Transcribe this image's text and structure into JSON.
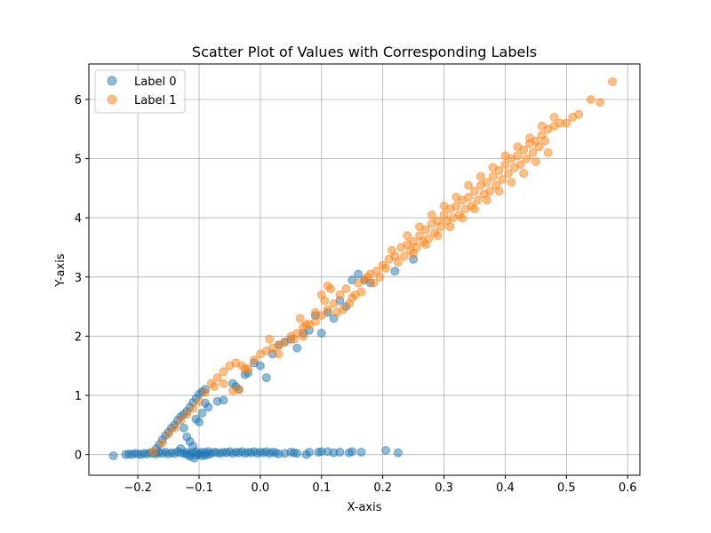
{
  "chart_data": {
    "type": "scatter",
    "title": "Scatter Plot of Values with Corresponding Labels",
    "xlabel": "X-axis",
    "ylabel": "Y-axis",
    "xlim": [
      -0.28,
      0.62
    ],
    "ylim": [
      -0.35,
      6.6
    ],
    "xticks": [
      -0.2,
      -0.1,
      0.0,
      0.1,
      0.2,
      0.3,
      0.4,
      0.5,
      0.6
    ],
    "xtick_labels": [
      "−0.2",
      "−0.1",
      "0.0",
      "0.1",
      "0.2",
      "0.3",
      "0.4",
      "0.5",
      "0.6"
    ],
    "yticks": [
      0,
      1,
      2,
      3,
      4,
      5,
      6
    ],
    "ytick_labels": [
      "0",
      "1",
      "2",
      "3",
      "4",
      "5",
      "6"
    ],
    "grid": true,
    "legend_position": "upper-left",
    "series": [
      {
        "name": "Label 0",
        "color": "#1f77b4",
        "points": [
          [
            -0.24,
            -0.02
          ],
          [
            -0.22,
            0.0
          ],
          [
            -0.215,
            0.01
          ],
          [
            -0.21,
            0.0
          ],
          [
            -0.205,
            0.02
          ],
          [
            -0.2,
            0.01
          ],
          [
            -0.195,
            0.0
          ],
          [
            -0.19,
            0.02
          ],
          [
            -0.185,
            0.01
          ],
          [
            -0.18,
            0.03
          ],
          [
            -0.175,
            0.02
          ],
          [
            -0.17,
            0.01
          ],
          [
            -0.165,
            0.03
          ],
          [
            -0.16,
            0.02
          ],
          [
            -0.155,
            0.04
          ],
          [
            -0.15,
            0.01
          ],
          [
            -0.145,
            0.03
          ],
          [
            -0.14,
            0.02
          ],
          [
            -0.135,
            0.05
          ],
          [
            -0.13,
            0.03
          ],
          [
            -0.125,
            0.02
          ],
          [
            -0.12,
            0.04
          ],
          [
            -0.115,
            0.01
          ],
          [
            -0.11,
            0.03
          ],
          [
            -0.105,
            0.05
          ],
          [
            -0.1,
            0.02
          ],
          [
            -0.095,
            0.04
          ],
          [
            -0.09,
            0.03
          ],
          [
            -0.085,
            0.05
          ],
          [
            -0.08,
            0.02
          ],
          [
            -0.075,
            0.04
          ],
          [
            -0.07,
            0.03
          ],
          [
            -0.065,
            0.02
          ],
          [
            -0.06,
            0.04
          ],
          [
            -0.055,
            0.03
          ],
          [
            -0.05,
            0.05
          ],
          [
            -0.045,
            0.02
          ],
          [
            -0.04,
            0.04
          ],
          [
            -0.035,
            0.03
          ],
          [
            -0.03,
            0.05
          ],
          [
            -0.025,
            0.02
          ],
          [
            -0.02,
            0.04
          ],
          [
            -0.015,
            0.03
          ],
          [
            -0.01,
            0.05
          ],
          [
            -0.005,
            0.02
          ],
          [
            0.0,
            0.04
          ],
          [
            0.005,
            0.03
          ],
          [
            0.01,
            0.05
          ],
          [
            0.015,
            0.02
          ],
          [
            0.02,
            0.04
          ],
          [
            0.025,
            0.03
          ],
          [
            0.03,
            0.01
          ],
          [
            0.04,
            0.02
          ],
          [
            0.05,
            0.04
          ],
          [
            0.055,
            0.03
          ],
          [
            0.06,
            0.02
          ],
          [
            0.075,
            0.0
          ],
          [
            0.08,
            0.04
          ],
          [
            0.095,
            0.04
          ],
          [
            0.1,
            0.05
          ],
          [
            0.11,
            0.05
          ],
          [
            0.12,
            0.03
          ],
          [
            0.13,
            0.04
          ],
          [
            0.145,
            0.03
          ],
          [
            0.15,
            0.05
          ],
          [
            0.165,
            0.04
          ],
          [
            0.205,
            0.07
          ],
          [
            0.225,
            0.03
          ],
          [
            -0.115,
            -0.03
          ],
          [
            -0.11,
            0.14
          ],
          [
            -0.105,
            -0.01
          ],
          [
            -0.1,
            0.0
          ],
          [
            -0.13,
            0.1
          ],
          [
            -0.12,
            0.0
          ],
          [
            -0.108,
            -0.06
          ],
          [
            -0.095,
            -0.02
          ],
          [
            -0.09,
            -0.01
          ],
          [
            -0.085,
            0.0
          ],
          [
            -0.17,
            0.1
          ],
          [
            -0.165,
            0.17
          ],
          [
            -0.16,
            0.25
          ],
          [
            -0.155,
            0.32
          ],
          [
            -0.15,
            0.38
          ],
          [
            -0.145,
            0.45
          ],
          [
            -0.14,
            0.5
          ],
          [
            -0.135,
            0.58
          ],
          [
            -0.13,
            0.64
          ],
          [
            -0.125,
            0.68
          ],
          [
            -0.12,
            0.73
          ],
          [
            -0.115,
            0.8
          ],
          [
            -0.11,
            0.88
          ],
          [
            -0.105,
            0.95
          ],
          [
            -0.1,
            1.02
          ],
          [
            -0.095,
            1.06
          ],
          [
            -0.09,
            1.1
          ],
          [
            -0.125,
            0.45
          ],
          [
            -0.12,
            0.3
          ],
          [
            -0.115,
            0.22
          ],
          [
            -0.105,
            0.6
          ],
          [
            -0.1,
            0.55
          ],
          [
            -0.095,
            0.7
          ],
          [
            -0.09,
            0.87
          ],
          [
            -0.085,
            0.8
          ],
          [
            -0.07,
            0.9
          ],
          [
            -0.06,
            0.92
          ],
          [
            -0.045,
            1.2
          ],
          [
            -0.04,
            1.15
          ],
          [
            -0.035,
            1.1
          ],
          [
            -0.025,
            1.35
          ],
          [
            -0.02,
            1.38
          ],
          [
            -0.01,
            1.55
          ],
          [
            0.0,
            1.5
          ],
          [
            0.01,
            1.3
          ],
          [
            0.02,
            1.7
          ],
          [
            0.03,
            1.85
          ],
          [
            0.04,
            1.9
          ],
          [
            0.05,
            1.95
          ],
          [
            0.06,
            1.8
          ],
          [
            0.07,
            2.05
          ],
          [
            0.08,
            2.1
          ],
          [
            0.09,
            2.35
          ],
          [
            0.1,
            2.05
          ],
          [
            0.11,
            2.4
          ],
          [
            0.12,
            2.3
          ],
          [
            0.13,
            2.6
          ],
          [
            0.14,
            2.5
          ],
          [
            0.15,
            2.95
          ],
          [
            0.16,
            3.05
          ],
          [
            0.17,
            2.95
          ],
          [
            0.18,
            2.9
          ],
          [
            0.22,
            3.1
          ],
          [
            0.25,
            3.3
          ]
        ]
      },
      {
        "name": "Label 1",
        "color": "#ff7f0e",
        "points": [
          [
            -0.175,
            0.05
          ],
          [
            -0.16,
            0.2
          ],
          [
            -0.15,
            0.35
          ],
          [
            -0.14,
            0.45
          ],
          [
            -0.13,
            0.58
          ],
          [
            -0.12,
            0.68
          ],
          [
            -0.11,
            0.78
          ],
          [
            -0.1,
            0.9
          ],
          [
            -0.09,
            1.05
          ],
          [
            -0.08,
            1.2
          ],
          [
            -0.07,
            1.3
          ],
          [
            -0.06,
            1.4
          ],
          [
            -0.05,
            1.5
          ],
          [
            -0.04,
            1.55
          ],
          [
            -0.03,
            1.5
          ],
          [
            -0.02,
            1.45
          ],
          [
            -0.01,
            1.6
          ],
          [
            0.0,
            1.7
          ],
          [
            0.01,
            1.75
          ],
          [
            0.015,
            1.95
          ],
          [
            0.02,
            1.8
          ],
          [
            0.03,
            1.85
          ],
          [
            0.04,
            1.9
          ],
          [
            0.05,
            2.0
          ],
          [
            0.06,
            2.05
          ],
          [
            0.065,
            2.3
          ],
          [
            0.07,
            2.15
          ],
          [
            0.08,
            2.2
          ],
          [
            0.09,
            2.25
          ],
          [
            0.1,
            2.35
          ],
          [
            0.105,
            2.6
          ],
          [
            0.11,
            2.45
          ],
          [
            0.12,
            2.55
          ],
          [
            0.13,
            2.7
          ],
          [
            0.14,
            2.8
          ],
          [
            0.15,
            2.65
          ],
          [
            0.16,
            2.9
          ],
          [
            0.17,
            2.95
          ],
          [
            0.18,
            3.05
          ],
          [
            0.19,
            3.1
          ],
          [
            0.2,
            3.2
          ],
          [
            0.21,
            3.3
          ],
          [
            0.22,
            3.35
          ],
          [
            0.23,
            3.5
          ],
          [
            0.24,
            3.55
          ],
          [
            0.25,
            3.6
          ],
          [
            0.26,
            3.7
          ],
          [
            0.27,
            3.8
          ],
          [
            0.28,
            3.9
          ],
          [
            0.29,
            3.95
          ],
          [
            0.3,
            4.05
          ],
          [
            0.31,
            4.15
          ],
          [
            0.32,
            4.2
          ],
          [
            0.33,
            4.3
          ],
          [
            0.34,
            4.35
          ],
          [
            0.35,
            4.45
          ],
          [
            0.36,
            4.55
          ],
          [
            0.37,
            4.6
          ],
          [
            0.38,
            4.7
          ],
          [
            0.39,
            4.8
          ],
          [
            0.4,
            4.9
          ],
          [
            0.41,
            5.0
          ],
          [
            0.42,
            5.05
          ],
          [
            0.43,
            5.15
          ],
          [
            0.44,
            5.25
          ],
          [
            0.45,
            5.3
          ],
          [
            0.46,
            5.4
          ],
          [
            0.47,
            5.5
          ],
          [
            0.48,
            5.55
          ],
          [
            0.49,
            5.6
          ],
          [
            0.5,
            5.6
          ],
          [
            0.51,
            5.7
          ],
          [
            0.52,
            5.75
          ],
          [
            0.54,
            6.0
          ],
          [
            0.555,
            5.95
          ],
          [
            0.575,
            6.3
          ],
          [
            -0.06,
            1.2
          ],
          [
            -0.045,
            1.08
          ],
          [
            -0.035,
            1.1
          ],
          [
            -0.025,
            1.45
          ],
          [
            0.03,
            1.7
          ],
          [
            0.055,
            1.95
          ],
          [
            0.075,
            2.2
          ],
          [
            0.1,
            2.7
          ],
          [
            0.115,
            2.8
          ],
          [
            0.125,
            2.4
          ],
          [
            0.135,
            2.45
          ],
          [
            0.145,
            2.55
          ],
          [
            0.155,
            2.7
          ],
          [
            0.165,
            2.75
          ],
          [
            0.175,
            3.0
          ],
          [
            0.185,
            2.9
          ],
          [
            0.195,
            3.0
          ],
          [
            0.205,
            3.15
          ],
          [
            0.215,
            3.45
          ],
          [
            0.225,
            3.25
          ],
          [
            0.235,
            3.35
          ],
          [
            0.245,
            3.45
          ],
          [
            0.255,
            3.5
          ],
          [
            0.265,
            3.6
          ],
          [
            0.275,
            3.65
          ],
          [
            0.285,
            3.75
          ],
          [
            0.295,
            3.85
          ],
          [
            0.305,
            3.95
          ],
          [
            0.315,
            4.0
          ],
          [
            0.325,
            4.05
          ],
          [
            0.335,
            4.15
          ],
          [
            0.345,
            4.2
          ],
          [
            0.355,
            4.3
          ],
          [
            0.365,
            4.4
          ],
          [
            0.375,
            4.45
          ],
          [
            0.385,
            4.55
          ],
          [
            0.395,
            4.65
          ],
          [
            0.405,
            4.75
          ],
          [
            0.415,
            4.85
          ],
          [
            0.425,
            4.9
          ],
          [
            0.435,
            5.0
          ],
          [
            0.445,
            5.1
          ],
          [
            0.455,
            5.2
          ],
          [
            0.465,
            5.3
          ],
          [
            0.24,
            3.7
          ],
          [
            0.26,
            3.85
          ],
          [
            0.28,
            4.05
          ],
          [
            0.3,
            4.2
          ],
          [
            0.32,
            4.35
          ],
          [
            0.34,
            4.55
          ],
          [
            0.36,
            4.7
          ],
          [
            0.38,
            4.85
          ],
          [
            0.4,
            5.05
          ],
          [
            0.42,
            5.2
          ],
          [
            0.44,
            5.35
          ],
          [
            0.46,
            5.55
          ],
          [
            0.48,
            5.7
          ],
          [
            0.25,
            3.4
          ],
          [
            0.27,
            3.55
          ],
          [
            0.29,
            3.7
          ],
          [
            0.31,
            3.85
          ],
          [
            0.33,
            4.0
          ],
          [
            0.35,
            4.15
          ],
          [
            0.37,
            4.3
          ],
          [
            0.39,
            4.45
          ],
          [
            0.41,
            4.6
          ],
          [
            0.43,
            4.75
          ],
          [
            0.45,
            4.95
          ],
          [
            0.47,
            5.1
          ],
          [
            0.11,
            2.85
          ],
          [
            0.09,
            2.4
          ],
          [
            0.07,
            2.0
          ],
          [
            -0.075,
            1.15
          ]
        ]
      }
    ]
  }
}
